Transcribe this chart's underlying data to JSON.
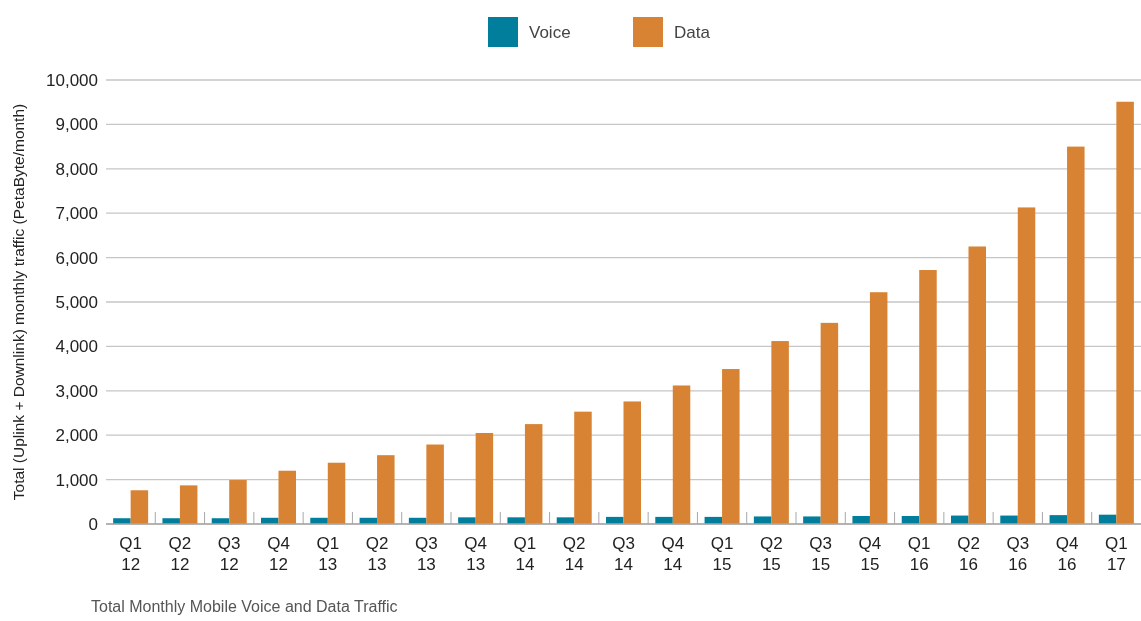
{
  "chart_data": {
    "type": "bar",
    "ylabel": "Total (Uplink + Downlink) monthly traffic (PetaByte/month)",
    "annotations": [
      "Total Monthly Mobile Voice and Data Traffic"
    ],
    "categories": [
      "Q1\n12",
      "Q2\n12",
      "Q3\n12",
      "Q4\n12",
      "Q1\n13",
      "Q2\n13",
      "Q3\n13",
      "Q4\n13",
      "Q1\n14",
      "Q2\n14",
      "Q3\n14",
      "Q4\n14",
      "Q1\n15",
      "Q2\n15",
      "Q3\n15",
      "Q4\n15",
      "Q1\n16",
      "Q2\n16",
      "Q3\n16",
      "Q4\n16",
      "Q1\n17"
    ],
    "series": [
      {
        "name": "Voice",
        "color": "#007e9b",
        "values": [
          130,
          130,
          130,
          140,
          140,
          140,
          140,
          150,
          150,
          150,
          160,
          160,
          160,
          170,
          170,
          180,
          180,
          190,
          190,
          200,
          210
        ]
      },
      {
        "name": "Data",
        "color": "#d88233",
        "values": [
          760,
          870,
          990,
          1200,
          1380,
          1550,
          1790,
          2050,
          2250,
          2530,
          2760,
          3120,
          3490,
          4120,
          4530,
          5220,
          5720,
          6250,
          7130,
          8500,
          9510
        ]
      }
    ],
    "ylim": [
      0,
      10000
    ],
    "yticks": [
      0,
      {
        "value": 1000,
        "label": "1,000"
      },
      {
        "value": 2000,
        "label": "2,000"
      },
      {
        "value": 3000,
        "label": "3,000"
      },
      {
        "value": 4000,
        "label": "4,000"
      },
      {
        "value": 5000,
        "label": "5,000"
      },
      {
        "value": 6000,
        "label": "6,000"
      },
      {
        "value": 7000,
        "label": "7,000"
      },
      {
        "value": 8000,
        "label": "8,000"
      },
      {
        "value": 9000,
        "label": "9,000"
      },
      {
        "value": 10000,
        "label": "10,000"
      }
    ],
    "grid": "y",
    "legend": "top"
  }
}
